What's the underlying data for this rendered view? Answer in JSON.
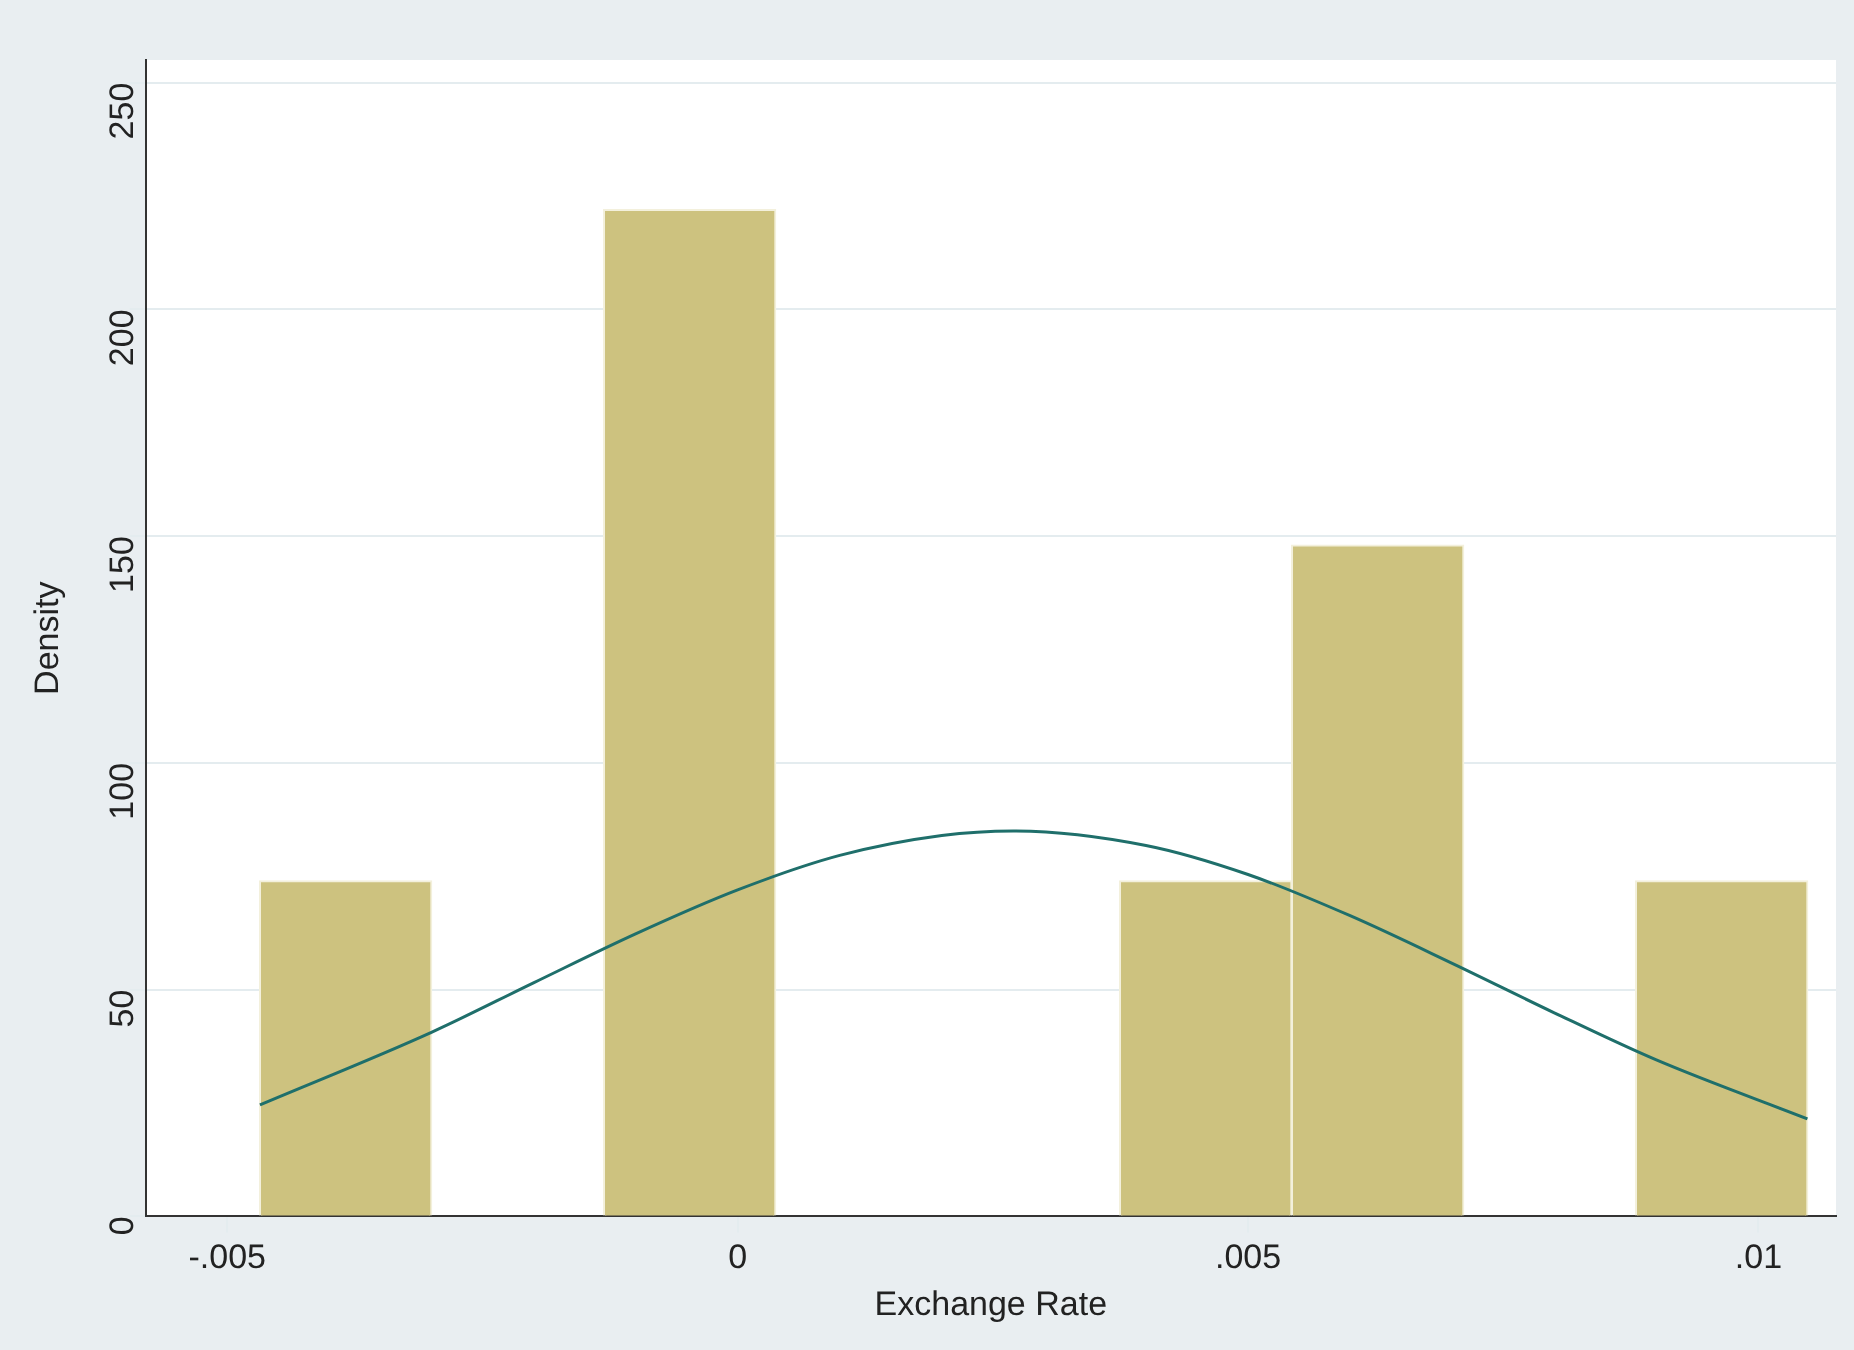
{
  "chart_data": {
    "type": "histogram",
    "xlabel": "Exchange Rate",
    "ylabel": "Density",
    "bins": [
      -0.00468,
      -0.003,
      -0.00131,
      0.00037,
      0.00206,
      0.00374,
      0.00543,
      0.00711,
      0.0088,
      0.01048
    ],
    "values": [
      74,
      0,
      222,
      0,
      0,
      74,
      148,
      0,
      74
    ],
    "color": "#cdc27f",
    "series": [
      {
        "type": "line",
        "color": "#1f6f6b",
        "marker": "none",
        "x": [
          -0.00468,
          -0.003,
          -0.002,
          -0.001,
          0,
          0.001,
          0.002,
          0.0027,
          0.004,
          0.005,
          0.006,
          0.007,
          0.008,
          0.009,
          0.01048
        ],
        "values": [
          24.6,
          40.6,
          51.5,
          62.3,
          72,
          79.6,
          84,
          85,
          81.8,
          75.4,
          66.3,
          55.8,
          44.9,
          34.5,
          21.5
        ]
      }
    ],
    "xlim": [
      -0.0058,
      0.01076
    ],
    "ylim": [
      0,
      255
    ],
    "xticks": [
      {
        "value": -0.005,
        "label": "-.005"
      },
      0,
      {
        "value": 0.005,
        "label": ".005"
      },
      {
        "value": 0.01,
        "label": ".01"
      }
    ],
    "yticks": [
      0,
      50,
      100,
      150,
      200,
      250
    ],
    "grid": "y",
    "legend": false
  }
}
